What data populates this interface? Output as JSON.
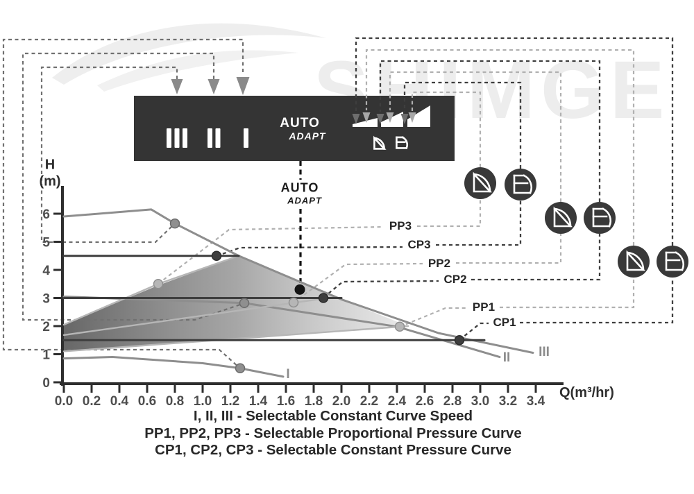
{
  "watermark": {
    "text": "SHIMGE"
  },
  "axis": {
    "y_name": "H",
    "y_unit": "(m)"
  },
  "panel": {
    "speed_settings": [
      "III",
      "II",
      "I"
    ],
    "auto_label": "AUTO",
    "adapt_label": "ADAPT",
    "panel_icons": [
      {
        "name": "proportional-pressure-icon",
        "type": "proportional"
      },
      {
        "name": "constant-pressure-icon",
        "type": "constant"
      }
    ]
  },
  "annotation": {
    "auto_label": "AUTO",
    "adapt_label": "ADAPT"
  },
  "mode_labels": {
    "pp3": "PP3",
    "cp3": "CP3",
    "pp2": "PP2",
    "cp2": "CP2",
    "pp1": "PP1",
    "cp1": "CP1"
  },
  "curve_end_labels": {
    "iii": "III",
    "ii": "II",
    "i": "I"
  },
  "mode_icons": [
    {
      "name": "pp3-icon",
      "type": "proportional"
    },
    {
      "name": "cp3-icon",
      "type": "constant"
    },
    {
      "name": "pp2-icon",
      "type": "proportional"
    },
    {
      "name": "cp2-icon",
      "type": "constant"
    },
    {
      "name": "pp1-icon",
      "type": "proportional"
    },
    {
      "name": "cp1-icon",
      "type": "constant"
    }
  ],
  "legend": {
    "lines": [
      "I, II, III - Selectable Constant Curve Speed",
      "PP1, PP2, PP3 - Selectable Proportional Pressure Curve",
      "CP1, CP2, CP3 - Selectable Constant Pressure Curve"
    ]
  },
  "chart_data": {
    "type": "line",
    "title": "",
    "xlabel": "Q(m³/hr)",
    "ylabel": "H (m)",
    "xlim": [
      0,
      3.4
    ],
    "ylim": [
      0,
      6
    ],
    "x_ticks": [
      "0.0",
      "0.2",
      "0.4",
      "0.6",
      "0.8",
      "1.0",
      "1.2",
      "1.4",
      "1.6",
      "1.8",
      "2.0",
      "2.2",
      "2.4",
      "2.6",
      "2.8",
      "3.0",
      "3.2",
      "3.4"
    ],
    "y_ticks": [
      "0",
      "1",
      "2",
      "3",
      "4",
      "5",
      "6"
    ],
    "series": [
      {
        "name": "III",
        "kind": "speed",
        "points": [
          [
            0,
            5.9
          ],
          [
            0.63,
            6.15
          ],
          [
            0.8,
            5.65
          ],
          [
            1.26,
            4.5
          ],
          [
            2.0,
            2.95
          ],
          [
            2.7,
            1.75
          ],
          [
            3.38,
            1.05
          ]
        ],
        "marker": [
          0.8,
          5.65
        ]
      },
      {
        "name": "II",
        "kind": "speed",
        "points": [
          [
            0,
            3.05
          ],
          [
            1.3,
            2.82
          ],
          [
            2.4,
            1.98
          ],
          [
            3.14,
            0.9
          ]
        ],
        "marker": [
          1.3,
          2.82
        ]
      },
      {
        "name": "I",
        "kind": "speed",
        "points": [
          [
            0,
            0.85
          ],
          [
            0.35,
            0.9
          ],
          [
            1.0,
            0.68
          ],
          [
            1.27,
            0.5
          ],
          [
            1.58,
            0.2
          ]
        ],
        "marker": [
          1.27,
          0.5
        ]
      },
      {
        "name": "PP3",
        "kind": "proportional-pressure",
        "points": [
          [
            0,
            2.05
          ],
          [
            0.68,
            3.5
          ],
          [
            1.26,
            4.5
          ]
        ],
        "marker": [
          0.68,
          3.5
        ]
      },
      {
        "name": "PP2",
        "kind": "proportional-pressure",
        "points": [
          [
            0,
            1.68
          ],
          [
            1.93,
            3.02
          ]
        ],
        "marker": [
          1.655,
          2.84
        ]
      },
      {
        "name": "PP1",
        "kind": "proportional-pressure",
        "points": [
          [
            0,
            1.1
          ],
          [
            2.48,
            2.0
          ]
        ],
        "marker": [
          2.42,
          1.98
        ]
      },
      {
        "name": "CP3",
        "kind": "constant-pressure",
        "points": [
          [
            0,
            4.5
          ],
          [
            1.26,
            4.5
          ]
        ],
        "marker": [
          1.1,
          4.5
        ]
      },
      {
        "name": "CP2",
        "kind": "constant-pressure",
        "points": [
          [
            0,
            3.0
          ],
          [
            2.0,
            3.0
          ]
        ],
        "marker": [
          1.87,
          3.0
        ]
      },
      {
        "name": "CP1",
        "kind": "constant-pressure",
        "points": [
          [
            0,
            1.5
          ],
          [
            3.03,
            1.5
          ]
        ],
        "marker": [
          2.85,
          1.5
        ]
      }
    ],
    "auto_adapt_point": [
      1.7,
      3.3
    ],
    "auto_adapt_region": [
      [
        0,
        2.05
      ],
      [
        0.68,
        3.45
      ],
      [
        1.26,
        4.5
      ],
      [
        2.0,
        2.95
      ],
      [
        2.48,
        2.0
      ],
      [
        0,
        1.1
      ]
    ],
    "grid": false,
    "legend_position": "below"
  }
}
